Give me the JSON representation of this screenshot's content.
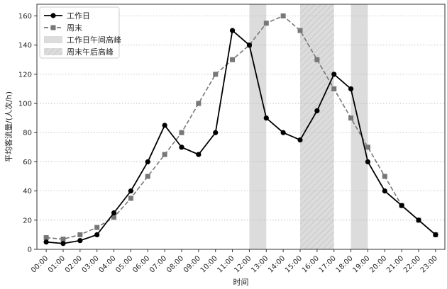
{
  "chart_data": {
    "type": "line",
    "xlabel": "时间",
    "ylabel": "平均客流量/(人次/h)",
    "ylim": [
      0,
      168
    ],
    "yticks": [
      0,
      20,
      40,
      60,
      80,
      100,
      120,
      140,
      160
    ],
    "grid": "horizontal-dotted",
    "legend_position": "top-left",
    "categories": [
      "00:00",
      "01:00",
      "02:00",
      "03:00",
      "04:00",
      "05:00",
      "06:00",
      "07:00",
      "08:00",
      "09:00",
      "10:00",
      "11:00",
      "12:00",
      "13:00",
      "14:00",
      "15:00",
      "16:00",
      "17:00",
      "18:00",
      "19:00",
      "20:00",
      "21:00",
      "22:00",
      "23:00"
    ],
    "series": [
      {
        "name": "工作日",
        "style": "solid",
        "marker": "circle",
        "color": "#000000",
        "values": [
          5,
          4,
          6,
          10,
          25,
          40,
          60,
          85,
          70,
          65,
          80,
          150,
          140,
          90,
          80,
          75,
          95,
          120,
          110,
          60,
          40,
          30,
          20,
          10
        ]
      },
      {
        "name": "周末",
        "style": "dashed",
        "marker": "square",
        "color": "#777777",
        "values": [
          8,
          7,
          10,
          15,
          22,
          35,
          50,
          65,
          80,
          100,
          120,
          130,
          140,
          155,
          160,
          150,
          130,
          110,
          90,
          70,
          50,
          30,
          20,
          10
        ]
      }
    ],
    "bands": [
      {
        "name": "工作日午间高峰",
        "hatched": false,
        "ranges": [
          [
            12,
            13
          ],
          [
            18,
            19
          ]
        ]
      },
      {
        "name": "周末午后高峰",
        "hatched": true,
        "ranges": [
          [
            15,
            17
          ]
        ]
      }
    ]
  }
}
